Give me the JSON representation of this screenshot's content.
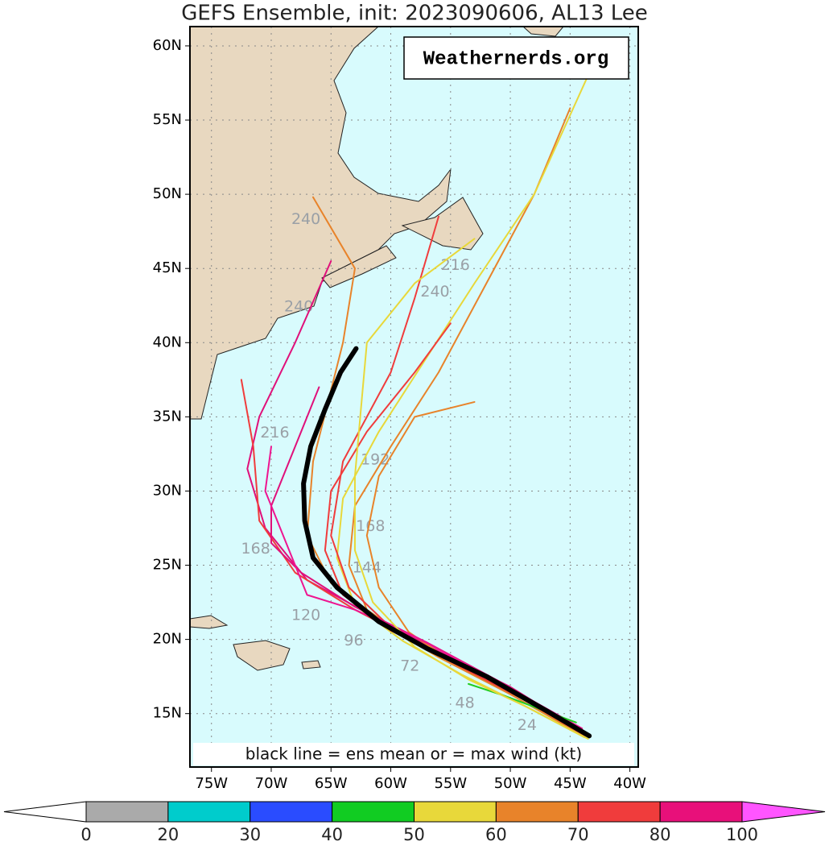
{
  "chart_data": {
    "type": "track-map",
    "title": "GEFS Ensemble, init: 2023090606, AL13 Lee",
    "watermark": "Weathernerds.org",
    "note": "black line = ens mean or = max wind (kt)",
    "xlim": [
      -76.8,
      -39.3
    ],
    "ylim": [
      11.4,
      61.3
    ],
    "xticks": [
      {
        "value": -75,
        "label": "75W"
      },
      {
        "value": -70,
        "label": "70W"
      },
      {
        "value": -65,
        "label": "65W"
      },
      {
        "value": -60,
        "label": "60W"
      },
      {
        "value": -55,
        "label": "55W"
      },
      {
        "value": -50,
        "label": "50W"
      },
      {
        "value": -45,
        "label": "45W"
      },
      {
        "value": -40,
        "label": "40W"
      }
    ],
    "yticks": [
      {
        "value": 15,
        "label": "15N"
      },
      {
        "value": 20,
        "label": "20N"
      },
      {
        "value": 25,
        "label": "25N"
      },
      {
        "value": 30,
        "label": "30N"
      },
      {
        "value": 35,
        "label": "35N"
      },
      {
        "value": 40,
        "label": "40N"
      },
      {
        "value": 45,
        "label": "45N"
      },
      {
        "value": 50,
        "label": "50N"
      },
      {
        "value": 55,
        "label": "55N"
      },
      {
        "value": 60,
        "label": "60N"
      }
    ],
    "grid": true,
    "mean": {
      "color": "#000000",
      "lon": [
        -43.4,
        -47,
        -52,
        -57,
        -61,
        -64.5,
        -66.5,
        -67.2,
        -67.3,
        -66.7,
        -65.5,
        -64.2,
        -62.9
      ],
      "lat": [
        13.5,
        15.2,
        17.5,
        19.4,
        21.2,
        23.5,
        25.5,
        28,
        30.5,
        33,
        35.5,
        38,
        39.6
      ]
    },
    "tracks": [
      {
        "color": "#e8832a",
        "lon": [
          -43.6,
          -48,
          -53,
          -58,
          -62,
          -63.5,
          -63,
          -60,
          -56,
          -52,
          -48,
          -45
        ],
        "lat": [
          13.6,
          15.8,
          17.8,
          19.8,
          22,
          25,
          29,
          33,
          38,
          44,
          50,
          55.8
        ]
      },
      {
        "color": "#e8d83a",
        "lon": [
          -43.8,
          -49,
          -54,
          -59,
          -63,
          -64.5,
          -64,
          -61,
          -57,
          -53,
          -48,
          -43.5
        ],
        "lat": [
          13.4,
          15.6,
          17.6,
          19.9,
          22.3,
          25.5,
          29.5,
          34,
          39,
          44,
          50,
          58
        ]
      },
      {
        "color": "#f03c3c",
        "lon": [
          -44,
          -50,
          -55,
          -60,
          -64,
          -65.5,
          -65,
          -62,
          -58,
          -55
        ],
        "lat": [
          13.7,
          16.5,
          18.6,
          20.6,
          23,
          26,
          30,
          34,
          38,
          41.3
        ]
      },
      {
        "color": "#e0107a",
        "lon": [
          -44.2,
          -50,
          -56,
          -62,
          -67,
          -70.5,
          -72,
          -71,
          -68,
          -65
        ],
        "lat": [
          13.9,
          16.8,
          19.2,
          21.8,
          24,
          27.5,
          31.5,
          35,
          40,
          45.5
        ]
      },
      {
        "color": "#f03c3c",
        "lon": [
          -44,
          -51,
          -57,
          -63,
          -68,
          -71,
          -71.5,
          -72.5
        ],
        "lat": [
          13.8,
          17,
          19.5,
          22,
          24.5,
          28,
          33,
          37.5
        ]
      },
      {
        "color": "#e8832a",
        "lon": [
          -43.9,
          -49,
          -54,
          -58.5,
          -61,
          -62,
          -61,
          -58,
          -53
        ],
        "lat": [
          13.5,
          16,
          18,
          20.5,
          23.5,
          27,
          31,
          35,
          36
        ]
      },
      {
        "color": "#e8832a",
        "lon": [
          -44.1,
          -50,
          -56,
          -61,
          -65,
          -67,
          -66.5,
          -64,
          -63,
          -66.5
        ],
        "lat": [
          13.6,
          16.3,
          18.8,
          21.2,
          23.8,
          27,
          32,
          40,
          45,
          49.8
        ]
      },
      {
        "color": "#f03c3c",
        "lon": [
          -43.7,
          -49,
          -55,
          -60,
          -63.5,
          -65,
          -64,
          -60,
          -58,
          -56
        ],
        "lat": [
          13.5,
          16,
          18.5,
          20.8,
          23.5,
          27,
          32,
          38,
          43,
          48.5
        ]
      },
      {
        "color": "#e0107a",
        "lon": [
          -44.3,
          -51,
          -57,
          -63,
          -67.5,
          -70,
          -70,
          -68,
          -66
        ],
        "lat": [
          13.9,
          17.2,
          19.8,
          22.2,
          24.5,
          26.5,
          29,
          33,
          37
        ]
      },
      {
        "color": "#ee1590",
        "lon": [
          -44,
          -52,
          -58,
          -63,
          -67,
          -69,
          -70.5,
          -70
        ],
        "lat": [
          14,
          17.6,
          20.2,
          22,
          23,
          27,
          30,
          33
        ]
      },
      {
        "color": "#22cc22",
        "lon": [
          -44.5,
          -47.5,
          -50.5,
          -53.5
        ],
        "lat": [
          14.4,
          15.3,
          16.2,
          17
        ]
      },
      {
        "color": "#e8d83a",
        "lon": [
          -43.5,
          -48.5,
          -53.5,
          -58,
          -61.5,
          -63,
          -63,
          -62,
          -58,
          -53
        ],
        "lat": [
          13.3,
          15.4,
          17.3,
          19.5,
          22.5,
          26,
          31,
          40,
          44,
          47
        ]
      }
    ],
    "hour_labels": [
      {
        "text": "240",
        "lon": -67.1,
        "lat": 48.3
      },
      {
        "text": "216",
        "lon": -54.6,
        "lat": 45.2
      },
      {
        "text": "240",
        "lon": -56.3,
        "lat": 43.4
      },
      {
        "text": "240",
        "lon": -67.7,
        "lat": 42.4
      },
      {
        "text": "216",
        "lon": -69.7,
        "lat": 33.9
      },
      {
        "text": "192",
        "lon": -61.3,
        "lat": 32.1
      },
      {
        "text": "168",
        "lon": -61.7,
        "lat": 27.6
      },
      {
        "text": "168",
        "lon": -71.3,
        "lat": 26.1
      },
      {
        "text": "144",
        "lon": -62,
        "lat": 24.8
      },
      {
        "text": "120",
        "lon": -67.1,
        "lat": 21.6
      },
      {
        "text": "96",
        "lon": -63.1,
        "lat": 19.9
      },
      {
        "text": "72",
        "lon": -58.4,
        "lat": 18.2
      },
      {
        "text": "48",
        "lon": -53.8,
        "lat": 15.7
      },
      {
        "text": "24",
        "lon": -48.6,
        "lat": 14.2
      }
    ],
    "colorbar": {
      "bounds": [
        0,
        20,
        30,
        40,
        50,
        60,
        70,
        80,
        100
      ],
      "colors": [
        "#aaaaaa",
        "#00cccc",
        "#2a4cff",
        "#11cc22",
        "#e8d83a",
        "#e8832a",
        "#f03c3c",
        "#e8107a"
      ],
      "extend_colors": [
        "#ffffff",
        "#ff55ff"
      ]
    }
  }
}
